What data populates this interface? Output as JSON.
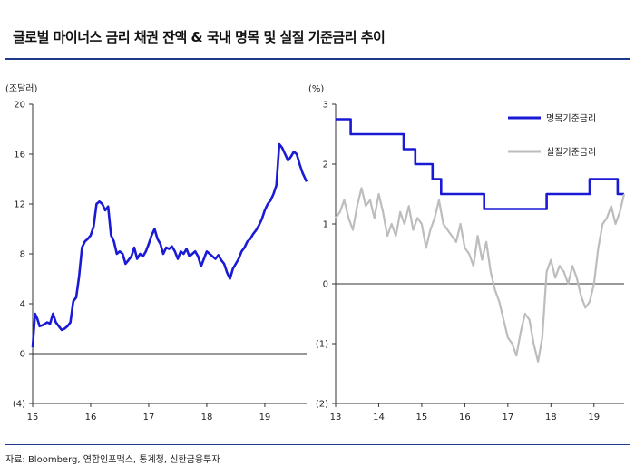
{
  "title": "글로벌 마이너스 금리 채권 잔액 & 국내 명목 및 실질 기준금리 추이",
  "source": "자료: Bloomberg, 연합인포맥스, 통계청, 신한금융투자",
  "colors": {
    "primary": "#1a1ad6",
    "secondary": "#bdbdbd",
    "rule": "#1f3a8a"
  },
  "chart_data": [
    {
      "type": "line",
      "unit_label": "(조달러)",
      "ylim": [
        -4,
        20
      ],
      "yticks": [
        -4,
        0,
        4,
        8,
        12,
        16,
        20
      ],
      "ytick_labels": [
        "(4)",
        "0",
        "4",
        "8",
        "12",
        "16",
        "20"
      ],
      "xlim": [
        15,
        19.72
      ],
      "xticks": [
        15,
        16,
        17,
        18,
        19
      ],
      "xtick_labels": [
        "15",
        "16",
        "17",
        "18",
        "19"
      ],
      "grid": false,
      "series": [
        {
          "x": [
            15.0,
            15.04,
            15.08,
            15.12,
            15.18,
            15.25,
            15.3,
            15.35,
            15.4,
            15.45,
            15.5,
            15.55,
            15.6,
            15.65,
            15.7,
            15.75,
            15.8,
            15.85,
            15.9,
            15.95,
            16.0,
            16.05,
            16.1,
            16.15,
            16.2,
            16.25,
            16.3,
            16.35,
            16.4,
            16.45,
            16.5,
            16.55,
            16.6,
            16.65,
            16.7,
            16.75,
            16.8,
            16.85,
            16.9,
            16.95,
            17.0,
            17.05,
            17.1,
            17.15,
            17.2,
            17.25,
            17.3,
            17.35,
            17.4,
            17.45,
            17.5,
            17.55,
            17.6,
            17.65,
            17.7,
            17.75,
            17.8,
            17.85,
            17.9,
            17.95,
            18.0,
            18.05,
            18.1,
            18.15,
            18.2,
            18.25,
            18.3,
            18.35,
            18.4,
            18.45,
            18.5,
            18.55,
            18.6,
            18.65,
            18.7,
            18.75,
            18.8,
            18.85,
            18.9,
            18.95,
            19.0,
            19.05,
            19.1,
            19.15,
            19.2,
            19.25,
            19.3,
            19.35,
            19.4,
            19.45,
            19.5,
            19.55,
            19.6,
            19.65,
            19.7,
            19.72
          ],
          "values": [
            0.5,
            3.2,
            2.8,
            2.2,
            2.3,
            2.5,
            2.4,
            3.2,
            2.5,
            2.2,
            1.9,
            2.0,
            2.2,
            2.5,
            4.2,
            4.5,
            6.2,
            8.5,
            9.0,
            9.2,
            9.5,
            10.2,
            12.0,
            12.2,
            12.0,
            11.5,
            11.8,
            9.5,
            9.0,
            8.0,
            8.2,
            8.0,
            7.2,
            7.5,
            7.8,
            8.5,
            7.6,
            8.0,
            7.8,
            8.2,
            8.8,
            9.5,
            10.0,
            9.2,
            8.8,
            8.0,
            8.5,
            8.4,
            8.6,
            8.2,
            7.6,
            8.2,
            8.0,
            8.4,
            7.8,
            8.0,
            8.2,
            7.8,
            7.0,
            7.6,
            8.2,
            8.0,
            7.8,
            7.6,
            7.9,
            7.5,
            7.2,
            6.5,
            6.0,
            6.8,
            7.2,
            7.6,
            8.2,
            8.5,
            9.0,
            9.2,
            9.6,
            9.9,
            10.3,
            10.8,
            11.5,
            12.0,
            12.3,
            12.8,
            13.5,
            16.8,
            16.5,
            16.0,
            15.5,
            15.8,
            16.2,
            16.0,
            15.2,
            14.5,
            14.0,
            13.8
          ]
        }
      ]
    },
    {
      "type": "line",
      "unit_label": "(%)",
      "ylim": [
        -2,
        3
      ],
      "yticks": [
        -2,
        -1,
        0,
        1,
        2,
        3
      ],
      "ytick_labels": [
        "(2)",
        "(1)",
        "0",
        "1",
        "2",
        "3"
      ],
      "xlim": [
        13,
        19.7
      ],
      "xticks": [
        13,
        14,
        15,
        16,
        17,
        18,
        19
      ],
      "xtick_labels": [
        "13",
        "14",
        "15",
        "16",
        "17",
        "18",
        "19"
      ],
      "grid": false,
      "legend_position": "top-right",
      "series": [
        {
          "name": "명목기준금리",
          "x": [
            13.0,
            13.35,
            13.35,
            14.58,
            14.58,
            14.85,
            14.85,
            15.25,
            15.25,
            15.45,
            15.45,
            16.45,
            16.45,
            17.9,
            17.9,
            18.9,
            18.9,
            19.55,
            19.55,
            19.7
          ],
          "values": [
            2.75,
            2.75,
            2.5,
            2.5,
            2.25,
            2.25,
            2.0,
            2.0,
            1.75,
            1.75,
            1.5,
            1.5,
            1.25,
            1.25,
            1.5,
            1.5,
            1.75,
            1.75,
            1.5,
            1.5
          ]
        },
        {
          "name": "실질기준금리",
          "x": [
            13.0,
            13.1,
            13.2,
            13.3,
            13.4,
            13.5,
            13.6,
            13.7,
            13.8,
            13.9,
            14.0,
            14.1,
            14.2,
            14.3,
            14.4,
            14.5,
            14.6,
            14.7,
            14.8,
            14.9,
            15.0,
            15.1,
            15.2,
            15.3,
            15.4,
            15.5,
            15.6,
            15.7,
            15.8,
            15.9,
            16.0,
            16.1,
            16.2,
            16.3,
            16.4,
            16.5,
            16.6,
            16.7,
            16.8,
            16.9,
            17.0,
            17.1,
            17.2,
            17.3,
            17.4,
            17.5,
            17.6,
            17.7,
            17.8,
            17.9,
            18.0,
            18.1,
            18.2,
            18.3,
            18.4,
            18.5,
            18.6,
            18.7,
            18.8,
            18.9,
            19.0,
            19.1,
            19.2,
            19.3,
            19.4,
            19.5,
            19.6,
            19.7
          ],
          "values": [
            1.1,
            1.2,
            1.4,
            1.1,
            0.9,
            1.3,
            1.6,
            1.3,
            1.4,
            1.1,
            1.5,
            1.2,
            0.8,
            1.0,
            0.8,
            1.2,
            1.0,
            1.3,
            0.9,
            1.1,
            1.0,
            0.6,
            0.9,
            1.1,
            1.4,
            1.0,
            0.9,
            0.8,
            0.7,
            1.0,
            0.6,
            0.5,
            0.3,
            0.8,
            0.4,
            0.7,
            0.2,
            -0.1,
            -0.3,
            -0.6,
            -0.9,
            -1.0,
            -1.2,
            -0.8,
            -0.5,
            -0.6,
            -1.0,
            -1.3,
            -0.9,
            0.2,
            0.4,
            0.1,
            0.3,
            0.2,
            0.0,
            0.3,
            0.1,
            -0.2,
            -0.4,
            -0.3,
            0.0,
            0.6,
            1.0,
            1.1,
            1.3,
            1.0,
            1.2,
            1.5
          ]
        }
      ]
    }
  ]
}
